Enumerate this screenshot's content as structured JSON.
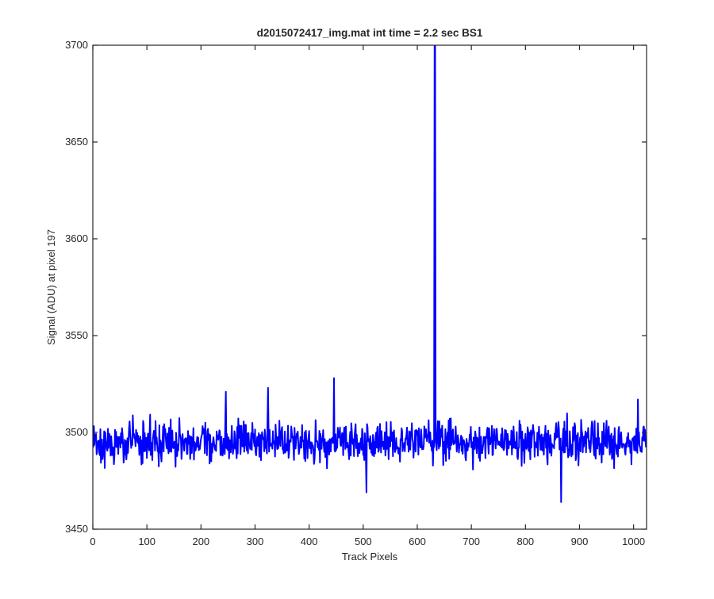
{
  "chart_data": {
    "type": "line",
    "title": "d2015072417_img.mat int time = 2.2 sec   BS1",
    "xlabel": "Track Pixels",
    "ylabel": "Signal (ADU) at pixel 197",
    "xlim": [
      0,
      1024
    ],
    "ylim": [
      3450,
      3700
    ],
    "xticks": [
      0,
      100,
      200,
      300,
      400,
      500,
      600,
      700,
      800,
      900,
      1000
    ],
    "yticks": [
      3450,
      3500,
      3550,
      3600,
      3650,
      3700
    ],
    "grid": false,
    "legend": "none",
    "series": [
      {
        "color": "#0000ff",
        "baseline": 3495,
        "noise_amplitude": 7,
        "spikes": [
          {
            "x": 246,
            "y": 3521
          },
          {
            "x": 324,
            "y": 3523
          },
          {
            "x": 446,
            "y": 3528
          },
          {
            "x": 506,
            "y": 3469
          },
          {
            "x": 632,
            "y": 3700
          },
          {
            "x": 633,
            "y": 3700
          },
          {
            "x": 866,
            "y": 3464
          },
          {
            "x": 1008,
            "y": 3517
          }
        ]
      }
    ]
  }
}
